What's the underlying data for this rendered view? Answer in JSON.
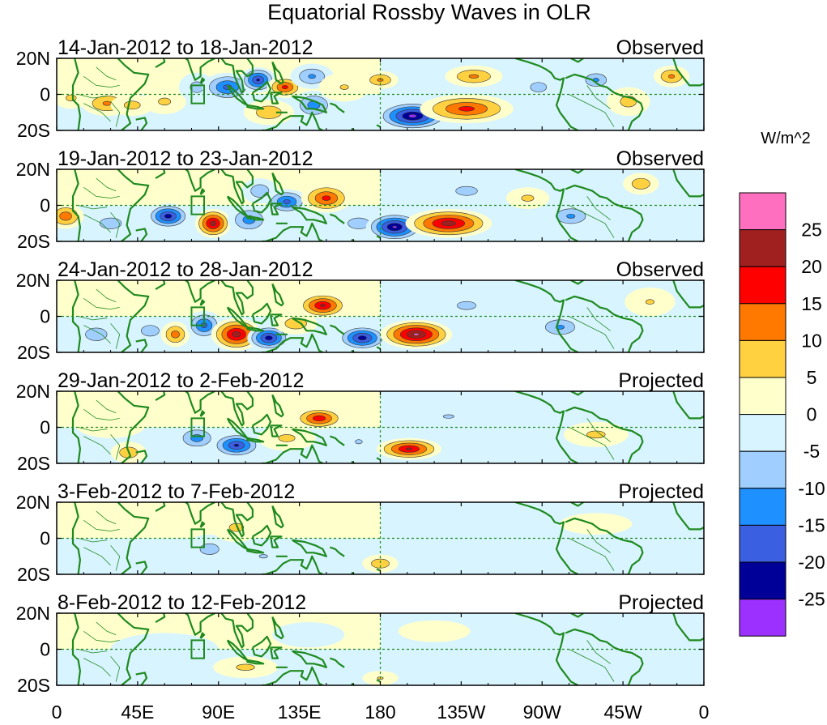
{
  "chart_data": {
    "type": "heatmap",
    "title": "Equatorial Rossby Waves in OLR",
    "units": "W/m^2",
    "x_ticks": [
      "0",
      "45E",
      "90E",
      "135E",
      "180",
      "135W",
      "90W",
      "45W",
      "0"
    ],
    "y_ticks": [
      "20N",
      "0",
      "20S"
    ],
    "color_levels": [
      -25,
      -20,
      -15,
      -10,
      -5,
      0,
      5,
      10,
      15,
      20,
      25
    ],
    "colorbar_labels": [
      "25",
      "20",
      "15",
      "10",
      "5",
      "0",
      "-5",
      "-10",
      "-15",
      "-20",
      "-25"
    ],
    "colors": [
      "#9b30ff",
      "#000099",
      "#3a5fe0",
      "#1e90ff",
      "#a0cfff",
      "#d8f4ff",
      "#ffffcc",
      "#ffd040",
      "#ff7800",
      "#ff0000",
      "#a02020",
      "#ff6fbf"
    ],
    "panels": [
      {
        "label": "14-Jan-2012 to 18-Jan-2012",
        "status": "Observed",
        "anomalies": [
          {
            "lon": 8,
            "lat": -2,
            "value": 7,
            "rlon": 10,
            "rlat": 6
          },
          {
            "lon": 28,
            "lat": -5,
            "value": 12,
            "rlon": 14,
            "rlat": 7
          },
          {
            "lon": 42,
            "lat": -6,
            "value": 8,
            "rlon": 12,
            "rlat": 6
          },
          {
            "lon": 60,
            "lat": -4,
            "value": 7,
            "rlon": 12,
            "rlat": 7
          },
          {
            "lon": 78,
            "lat": 4,
            "value": -8,
            "rlon": 10,
            "rlat": 8
          },
          {
            "lon": 95,
            "lat": 4,
            "value": -18,
            "rlon": 14,
            "rlat": 8
          },
          {
            "lon": 112,
            "lat": 8,
            "value": -22,
            "rlon": 10,
            "rlat": 7
          },
          {
            "lon": 127,
            "lat": 4,
            "value": 18,
            "rlon": 10,
            "rlat": 6
          },
          {
            "lon": 118,
            "lat": -10,
            "value": 10,
            "rlon": 14,
            "rlat": 7
          },
          {
            "lon": 142,
            "lat": 10,
            "value": -12,
            "rlon": 12,
            "rlat": 7
          },
          {
            "lon": 143,
            "lat": -6,
            "value": -14,
            "rlon": 12,
            "rlat": 8
          },
          {
            "lon": 160,
            "lat": 4,
            "value": 6,
            "rlon": 14,
            "rlat": 8
          },
          {
            "lon": 180,
            "lat": 8,
            "value": 12,
            "rlon": 10,
            "rlat": 5
          },
          {
            "lon": 198,
            "lat": -12,
            "value": -28,
            "rlon": 20,
            "rlat": 8
          },
          {
            "lon": 228,
            "lat": -8,
            "value": 18,
            "rlon": 26,
            "rlat": 8
          },
          {
            "lon": 232,
            "lat": 10,
            "value": 12,
            "rlon": 16,
            "rlat": 6
          },
          {
            "lon": 268,
            "lat": 4,
            "value": -8,
            "rlon": 12,
            "rlat": 7
          },
          {
            "lon": 300,
            "lat": 8,
            "value": -12,
            "rlon": 10,
            "rlat": 6
          },
          {
            "lon": 318,
            "lat": -4,
            "value": 8,
            "rlon": 12,
            "rlat": 8
          },
          {
            "lon": 342,
            "lat": 10,
            "value": 12,
            "rlon": 10,
            "rlat": 6
          }
        ]
      },
      {
        "label": "19-Jan-2012 to 23-Jan-2012",
        "status": "Observed",
        "anomalies": [
          {
            "lon": 5,
            "lat": -6,
            "value": 15,
            "rlon": 10,
            "rlat": 7
          },
          {
            "lon": 30,
            "lat": -10,
            "value": -10,
            "rlon": 12,
            "rlat": 6
          },
          {
            "lon": 62,
            "lat": -6,
            "value": -24,
            "rlon": 12,
            "rlat": 7
          },
          {
            "lon": 87,
            "lat": -10,
            "value": 24,
            "rlon": 10,
            "rlat": 8
          },
          {
            "lon": 107,
            "lat": -8,
            "value": -14,
            "rlon": 12,
            "rlat": 8
          },
          {
            "lon": 113,
            "lat": 8,
            "value": -10,
            "rlon": 10,
            "rlat": 7
          },
          {
            "lon": 128,
            "lat": 2,
            "value": -18,
            "rlon": 12,
            "rlat": 7
          },
          {
            "lon": 150,
            "lat": 4,
            "value": 18,
            "rlon": 14,
            "rlat": 8
          },
          {
            "lon": 168,
            "lat": -10,
            "value": -10,
            "rlon": 12,
            "rlat": 6
          },
          {
            "lon": 188,
            "lat": -12,
            "value": -27,
            "rlon": 16,
            "rlat": 8
          },
          {
            "lon": 218,
            "lat": -10,
            "value": 24,
            "rlon": 24,
            "rlat": 8
          },
          {
            "lon": 228,
            "lat": 8,
            "value": -10,
            "rlon": 12,
            "rlat": 5
          },
          {
            "lon": 262,
            "lat": 4,
            "value": 7,
            "rlon": 12,
            "rlat": 6
          },
          {
            "lon": 286,
            "lat": -6,
            "value": -12,
            "rlon": 14,
            "rlat": 7
          },
          {
            "lon": 325,
            "lat": 12,
            "value": 10,
            "rlon": 10,
            "rlat": 6
          }
        ]
      },
      {
        "label": "24-Jan-2012 to 28-Jan-2012",
        "status": "Observed",
        "anomalies": [
          {
            "lon": 22,
            "lat": -10,
            "value": -10,
            "rlon": 12,
            "rlat": 7
          },
          {
            "lon": 52,
            "lat": -8,
            "value": -10,
            "rlon": 10,
            "rlat": 6
          },
          {
            "lon": 66,
            "lat": -10,
            "value": 14,
            "rlon": 8,
            "rlat": 7
          },
          {
            "lon": 82,
            "lat": -5,
            "value": -18,
            "rlon": 10,
            "rlat": 8
          },
          {
            "lon": 100,
            "lat": -10,
            "value": 24,
            "rlon": 14,
            "rlat": 9
          },
          {
            "lon": 118,
            "lat": -12,
            "value": -24,
            "rlon": 12,
            "rlat": 7
          },
          {
            "lon": 133,
            "lat": -4,
            "value": 10,
            "rlon": 12,
            "rlat": 6
          },
          {
            "lon": 148,
            "lat": 6,
            "value": 22,
            "rlon": 14,
            "rlat": 7
          },
          {
            "lon": 170,
            "lat": -12,
            "value": -24,
            "rlon": 14,
            "rlat": 7
          },
          {
            "lon": 200,
            "lat": -10,
            "value": 27,
            "rlon": 20,
            "rlat": 8
          },
          {
            "lon": 228,
            "lat": 6,
            "value": -8,
            "rlon": 14,
            "rlat": 6
          },
          {
            "lon": 280,
            "lat": -6,
            "value": -12,
            "rlon": 14,
            "rlat": 7
          },
          {
            "lon": 330,
            "lat": 8,
            "value": 6,
            "rlon": 14,
            "rlat": 8
          }
        ]
      },
      {
        "label": "29-Jan-2012 to 2-Feb-2012",
        "status": "Projected",
        "anomalies": [
          {
            "lon": 30,
            "lat": 2,
            "value": 5,
            "rlon": 20,
            "rlat": 8
          },
          {
            "lon": 40,
            "lat": -14,
            "value": 10,
            "rlon": 10,
            "rlat": 6
          },
          {
            "lon": 78,
            "lat": -6,
            "value": -14,
            "rlon": 12,
            "rlat": 7
          },
          {
            "lon": 100,
            "lat": -10,
            "value": -22,
            "rlon": 14,
            "rlat": 7
          },
          {
            "lon": 128,
            "lat": -6,
            "value": 7,
            "rlon": 16,
            "rlat": 7
          },
          {
            "lon": 146,
            "lat": 5,
            "value": 20,
            "rlon": 14,
            "rlat": 6
          },
          {
            "lon": 168,
            "lat": -8,
            "value": -6,
            "rlon": 12,
            "rlat": 7
          },
          {
            "lon": 196,
            "lat": -12,
            "value": 22,
            "rlon": 18,
            "rlat": 6
          },
          {
            "lon": 218,
            "lat": 6,
            "value": -6,
            "rlon": 18,
            "rlat": 6
          },
          {
            "lon": 300,
            "lat": -4,
            "value": 7,
            "rlon": 18,
            "rlat": 7
          }
        ]
      },
      {
        "label": "3-Feb-2012 to 7-Feb-2012",
        "status": "Projected",
        "anomalies": [
          {
            "lon": 20,
            "lat": 8,
            "value": 5,
            "rlon": 18,
            "rlat": 6
          },
          {
            "lon": 85,
            "lat": -6,
            "value": -8,
            "rlon": 14,
            "rlat": 8
          },
          {
            "lon": 100,
            "lat": 6,
            "value": 7,
            "rlon": 14,
            "rlat": 8
          },
          {
            "lon": 115,
            "lat": -10,
            "value": -6,
            "rlon": 14,
            "rlat": 6
          },
          {
            "lon": 180,
            "lat": -14,
            "value": 10,
            "rlon": 10,
            "rlat": 5
          },
          {
            "lon": 230,
            "lat": 2,
            "value": -4,
            "rlon": 40,
            "rlat": 10
          },
          {
            "lon": 300,
            "lat": 8,
            "value": 4,
            "rlon": 20,
            "rlat": 6
          }
        ]
      },
      {
        "label": "8-Feb-2012 to 12-Feb-2012",
        "status": "Projected",
        "anomalies": [
          {
            "lon": 60,
            "lat": 0,
            "value": -4,
            "rlon": 30,
            "rlat": 9
          },
          {
            "lon": 105,
            "lat": -10,
            "value": 7,
            "rlon": 18,
            "rlat": 6
          },
          {
            "lon": 140,
            "lat": 8,
            "value": -4,
            "rlon": 20,
            "rlat": 7
          },
          {
            "lon": 180,
            "lat": -16,
            "value": 6,
            "rlon": 10,
            "rlat": 4
          },
          {
            "lon": 210,
            "lat": 10,
            "value": 4,
            "rlon": 20,
            "rlat": 6
          },
          {
            "lon": 260,
            "lat": -4,
            "value": -4,
            "rlon": 30,
            "rlat": 8
          }
        ]
      }
    ]
  }
}
